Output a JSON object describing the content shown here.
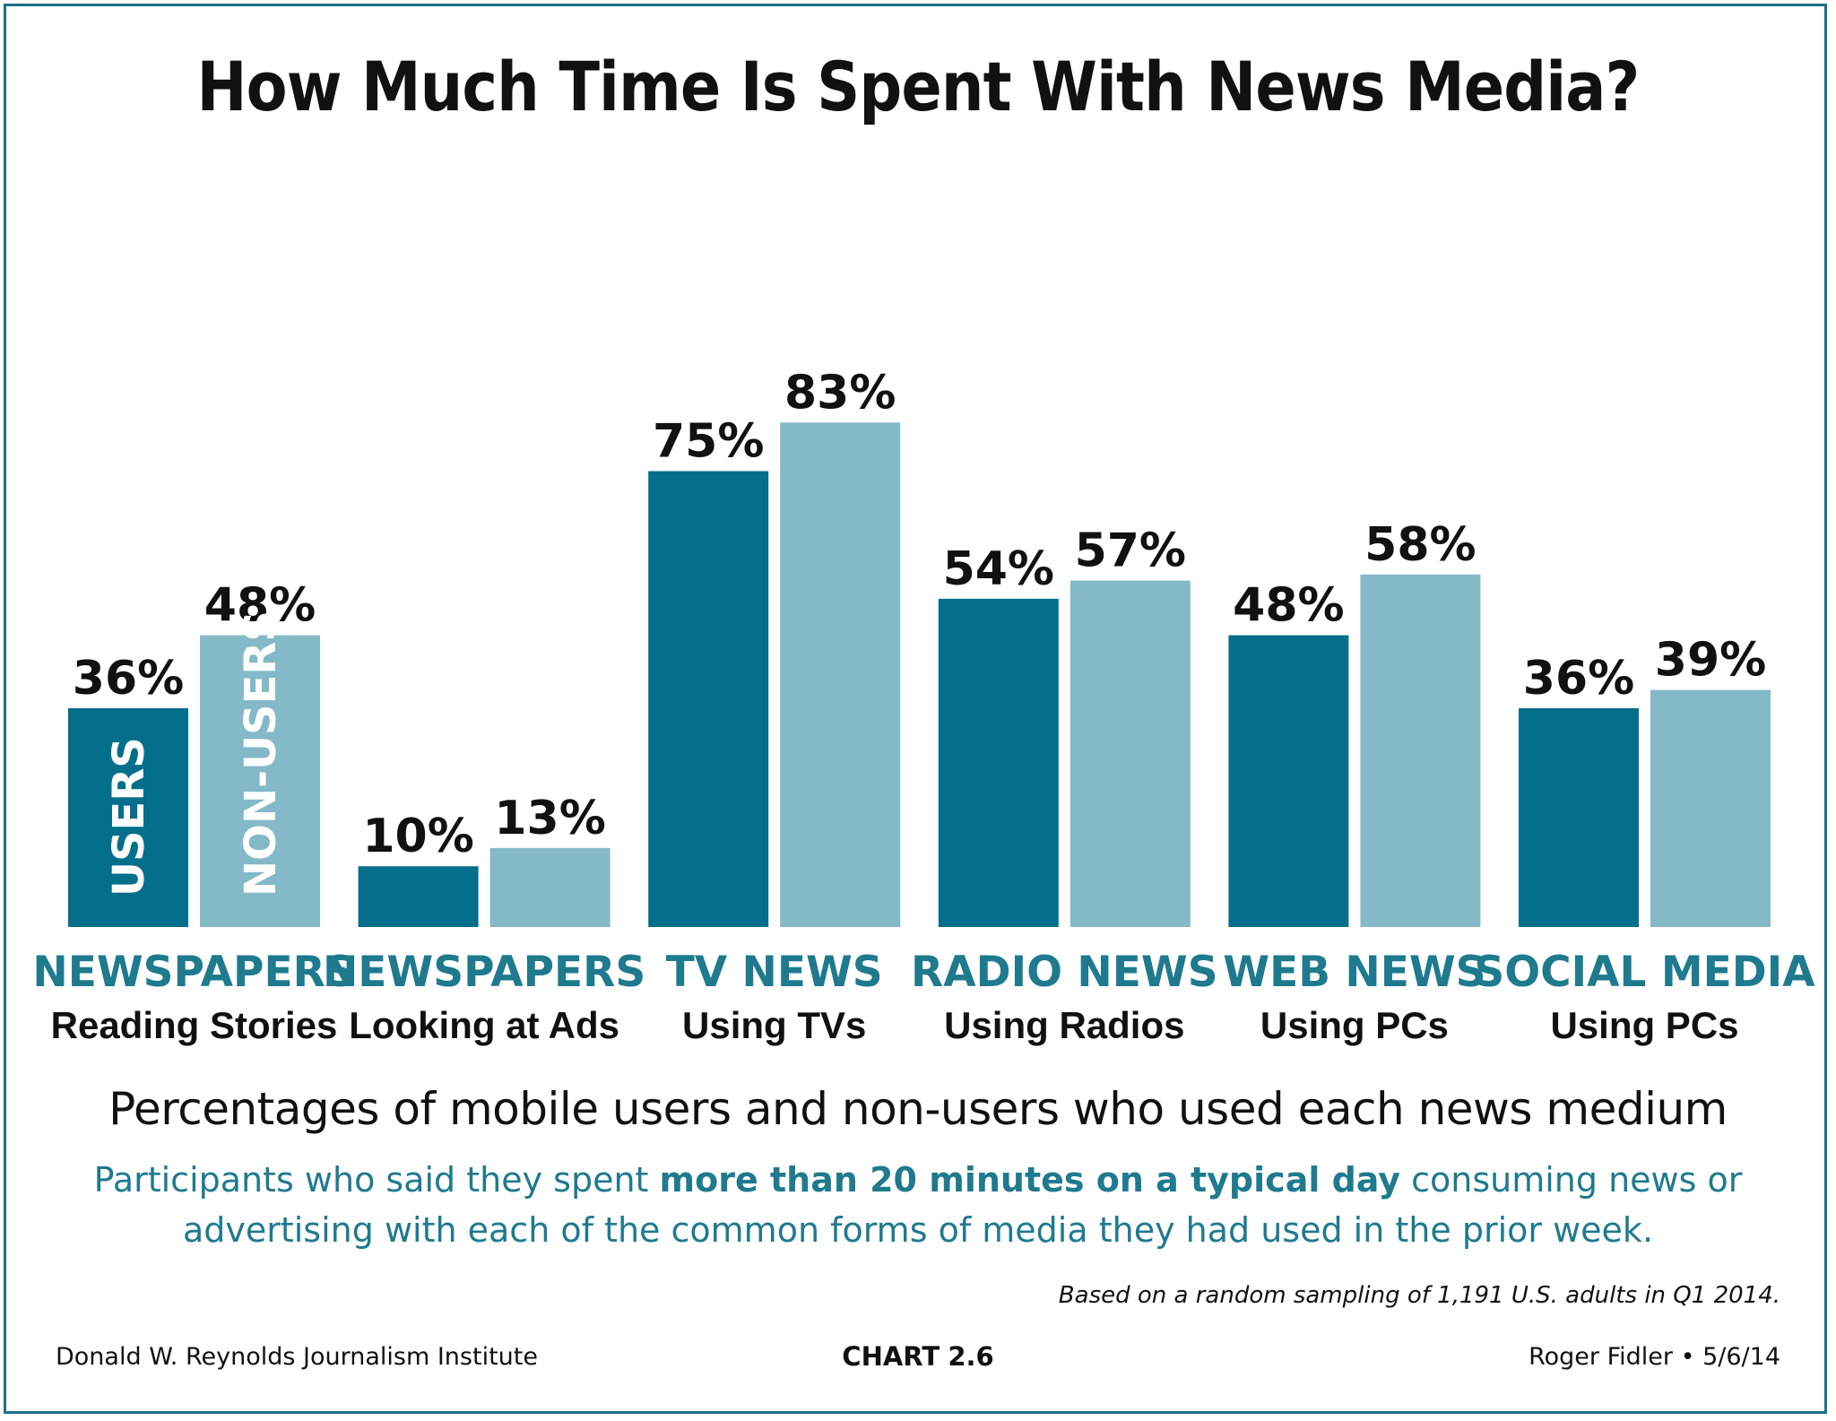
{
  "colors": {
    "users": "#046f8b",
    "non_users": "#84b9c8",
    "accent": "#1f7a8e",
    "border": "#1b7186"
  },
  "chart_data": {
    "type": "bar",
    "title": "How Much Time Is Spent With News Media?",
    "categories": [
      "NEWSPAPERS",
      "NEWSPAPERS",
      "TV NEWS",
      "RADIO NEWS",
      "WEB NEWS",
      "SOCIAL MEDIA"
    ],
    "subcategories": [
      "Reading Stories",
      "Looking at Ads",
      "Using TVs",
      "Using Radios",
      "Using PCs",
      "Using PCs"
    ],
    "series": [
      {
        "name": "USERS",
        "values": [
          36,
          10,
          75,
          54,
          48,
          36
        ],
        "labels": [
          "36%",
          "10%",
          "75%",
          "54%",
          "48%",
          "36%"
        ]
      },
      {
        "name": "NON-USERS",
        "values": [
          48,
          13,
          83,
          57,
          58,
          39
        ],
        "labels": [
          "48%",
          "13%",
          "83%",
          "57%",
          "58%",
          "39%"
        ]
      }
    ],
    "ylim": [
      0,
      100
    ],
    "grid": false,
    "legend": "inside first group bars"
  },
  "text": {
    "subtitle": "Percentages of mobile users and non-users who used each news medium",
    "note_pre": "Participants who said they spent ",
    "note_bold": "more than 20 minutes on a typical day",
    "note_post": " consuming news or advertising with each of the common forms of media they had used in the prior week.",
    "basis": "Based on a random sampling of 1,191 U.S. adults in Q1 2014.",
    "footer_left": "Donald W. Reynolds Journalism Institute",
    "footer_center_label": "CHART",
    "footer_center_number": "2.6",
    "footer_right": "Roger Fidler • 5/6/14"
  }
}
